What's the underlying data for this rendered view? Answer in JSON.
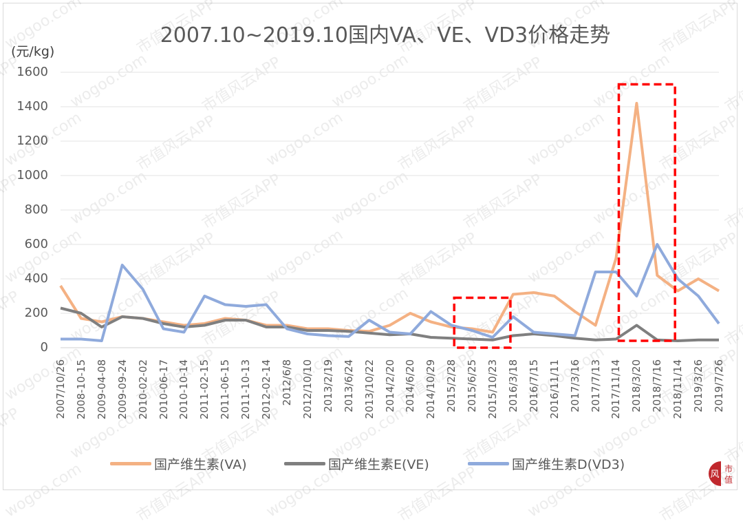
{
  "chart_data": {
    "type": "line",
    "title": "2007.10~2019.10国内VA、VE、VD3价格走势",
    "ylabel": "(元/kg)",
    "xlabel": "",
    "ylim": [
      0,
      1600
    ],
    "yticks": [
      0,
      200,
      400,
      600,
      800,
      1000,
      1200,
      1400,
      1600
    ],
    "grid": true,
    "legend_position": "bottom",
    "x_tick_labels": [
      "2007/10/26",
      "2008-10-15",
      "2009-04-08",
      "2009-09-24",
      "2010-02-02",
      "2010-06-17",
      "2010-10-14",
      "2011-02-15",
      "2011-06-15",
      "2011-10-13",
      "2012-02-14",
      "2012/6/8",
      "2012/10/10",
      "2013/2/19",
      "2013/6/24",
      "2013/10/22",
      "2014/2/20",
      "2014/6/20",
      "2014/10/29",
      "2015/2/28",
      "2015/6/25",
      "2015/10/23",
      "2016/3/18",
      "2016/7/15",
      "2016/11/11",
      "2017/3/16",
      "2017/7/13",
      "2017/11/14",
      "2018/3/20",
      "2018/7/16",
      "2018/11/14",
      "2019/3/26",
      "2019/7/26"
    ],
    "x": [
      "2007/10/26",
      "2008-10-15",
      "2009-04-08",
      "2009-09-24",
      "2010-02-02",
      "2010-06-17",
      "2010-10-14",
      "2011-02-15",
      "2011-06-15",
      "2011-10-13",
      "2012-02-14",
      "2012/6/8",
      "2012/10/10",
      "2013/2/19",
      "2013/6/24",
      "2013/10/22",
      "2014/2/20",
      "2014/6/20",
      "2014/10/29",
      "2015/2/28",
      "2015/6/25",
      "2015/10/23",
      "2016/3/18",
      "2016/7/15",
      "2016/11/11",
      "2017/3/16",
      "2017/7/13",
      "2017/11/14",
      "2018/3/20",
      "2018/7/16",
      "2018/11/14",
      "2019/3/26",
      "2019/7/26"
    ],
    "series": [
      {
        "name": "国产维生素(VA)",
        "color": "#f4b183",
        "values": [
          360,
          170,
          150,
          180,
          170,
          150,
          130,
          140,
          170,
          160,
          130,
          130,
          110,
          110,
          100,
          95,
          130,
          200,
          150,
          120,
          110,
          90,
          310,
          320,
          300,
          210,
          130,
          520,
          1420,
          420,
          330,
          400,
          330
        ]
      },
      {
        "name": "国产维生素E(VE)",
        "color": "#7f7f7f",
        "values": [
          230,
          200,
          120,
          180,
          170,
          140,
          120,
          130,
          160,
          160,
          120,
          120,
          100,
          100,
          95,
          85,
          75,
          80,
          60,
          55,
          50,
          45,
          70,
          80,
          70,
          55,
          45,
          50,
          130,
          45,
          40,
          45,
          45
        ]
      },
      {
        "name": "国产维生素D(VD3)",
        "color": "#8faadc",
        "values": [
          50,
          50,
          40,
          480,
          340,
          110,
          90,
          300,
          250,
          240,
          250,
          110,
          80,
          70,
          65,
          160,
          90,
          80,
          210,
          130,
          100,
          60,
          180,
          90,
          80,
          70,
          440,
          440,
          300,
          600,
          400,
          300,
          140
        ]
      }
    ],
    "annotations": [
      {
        "type": "dashed-rect",
        "color": "#ff0000",
        "x_range": [
          "2015/2/28",
          "2016/3/18"
        ],
        "y_range": [
          0,
          290
        ]
      },
      {
        "type": "dashed-rect",
        "color": "#ff0000",
        "x_range": [
          "2017/11/14",
          "2018/11/14"
        ],
        "y_range": [
          40,
          1530
        ]
      }
    ]
  },
  "header": {
    "title": "2007.10~2019.10国内VA、VE、VD3价格走势",
    "unit": "(元/kg)"
  },
  "legend": [
    {
      "label": "国产维生素(VA)",
      "color": "#f4b183"
    },
    {
      "label": "国产维生素E(VE)",
      "color": "#7f7f7f"
    },
    {
      "label": "国产维生素D(VD3)",
      "color": "#8faadc"
    }
  ],
  "watermark": {
    "text_a": "市值风云APP",
    "text_b": "wogoo.com"
  },
  "logo": {
    "left_glyph": "风",
    "right_text_1": "市",
    "right_text_2": "值",
    "color": "#c0282d"
  }
}
